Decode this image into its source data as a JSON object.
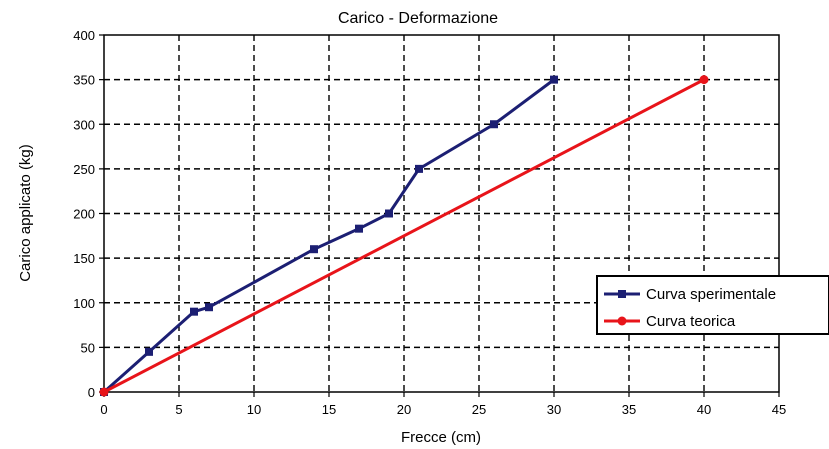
{
  "chart_data": {
    "type": "line",
    "title": "Carico - Deformazione",
    "xlabel": "Frecce (cm)",
    "ylabel": "Carico applicato (kg)",
    "xlim": [
      0,
      45
    ],
    "ylim": [
      0,
      400
    ],
    "xticks": [
      "0",
      "5",
      "10",
      "15",
      "20",
      "25",
      "30",
      "35",
      "40",
      "45"
    ],
    "yticks": [
      "0",
      "50",
      "100",
      "150",
      "200",
      "250",
      "300",
      "350",
      "400"
    ],
    "grid": true,
    "legend_position": "right",
    "series": [
      {
        "name": "Curva sperimentale",
        "color": "#1c1f73",
        "marker": "square",
        "points": [
          [
            0,
            0
          ],
          [
            3,
            45
          ],
          [
            6,
            90
          ],
          [
            7,
            95
          ],
          [
            14,
            160
          ],
          [
            17,
            183
          ],
          [
            19,
            200
          ],
          [
            21,
            250
          ],
          [
            26,
            300
          ],
          [
            30,
            350
          ]
        ]
      },
      {
        "name": "Curva teorica",
        "color": "#e8141a",
        "marker": "circle",
        "points": [
          [
            0,
            0
          ],
          [
            40,
            350
          ]
        ]
      }
    ]
  }
}
